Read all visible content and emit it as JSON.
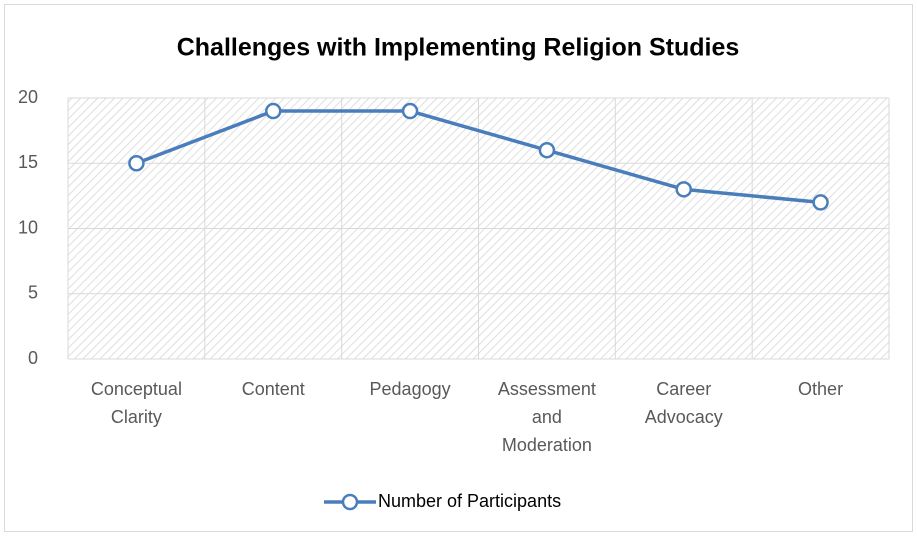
{
  "chart_data": {
    "type": "line",
    "title": "Challenges with Implementing Religion Studies",
    "categories": [
      "Conceptual Clarity",
      "Content",
      "Pedagogy",
      "Assessment and Moderation",
      "Career Advocacy",
      "Other"
    ],
    "series": [
      {
        "name": "Number of Participants",
        "color": "#4a7ebb",
        "values": [
          15,
          19,
          19,
          16,
          13,
          12
        ]
      }
    ],
    "ylim": [
      0,
      20
    ],
    "yticks": [
      0,
      5,
      10,
      15,
      20
    ],
    "grid": true,
    "legend": "bottom"
  }
}
